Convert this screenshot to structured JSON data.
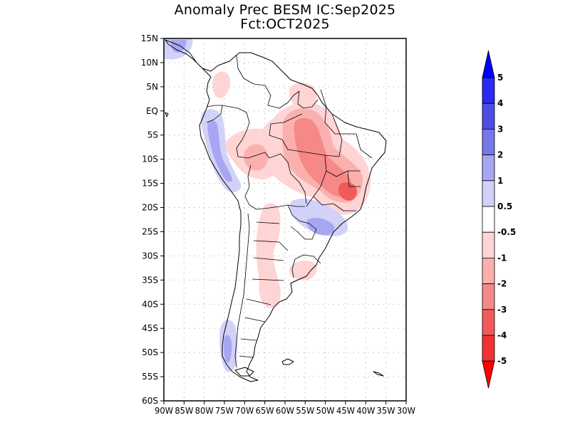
{
  "title": {
    "line1": "Anomaly Prec BESM IC:Sep2025",
    "line2": "Fct:OCT2025"
  },
  "map": {
    "region": "South America",
    "variable": "Precipitation anomaly",
    "lon_range": [
      -90,
      -30
    ],
    "lat_range": [
      -60,
      15
    ],
    "lat_ticks": [
      "15N",
      "10N",
      "5N",
      "EQ",
      "5S",
      "10S",
      "15S",
      "20S",
      "25S",
      "30S",
      "35S",
      "40S",
      "45S",
      "50S",
      "55S",
      "60S"
    ],
    "lon_ticks": [
      "90W",
      "85W",
      "80W",
      "75W",
      "70W",
      "65W",
      "60W",
      "55W",
      "50W",
      "45W",
      "40W",
      "35W",
      "30W"
    ],
    "anomaly_regions": [
      {
        "name": "central-brazil-dry",
        "sign": "negative",
        "level": "-1 to -2"
      },
      {
        "name": "minas-gerais-dry",
        "sign": "negative",
        "level": "-2 to -3"
      },
      {
        "name": "northern-brazil-dry",
        "sign": "negative",
        "level": "-0.5 to -1"
      },
      {
        "name": "argentina-dry",
        "sign": "negative",
        "level": "-0.5 to -1"
      },
      {
        "name": "peru-coast-wet",
        "sign": "positive",
        "level": "0.5 to 2"
      },
      {
        "name": "south-brazil-paraguay-wet",
        "sign": "positive",
        "level": "0.5 to 2"
      },
      {
        "name": "patagonia-wet",
        "sign": "positive",
        "level": "0.5 to 2"
      },
      {
        "name": "panama-wet",
        "sign": "positive",
        "level": "0.5 to 2"
      }
    ]
  },
  "colorbar": {
    "levels": [
      "5",
      "4",
      "3",
      "2",
      "1",
      "0.5",
      "-0.5",
      "-1",
      "-2",
      "-3",
      "-4",
      "-5"
    ],
    "colors": {
      "pos5": "#0000ff",
      "pos4": "#2a2af0",
      "pos3": "#4d4de6",
      "pos2": "#7777ec",
      "pos1": "#a6a6f2",
      "pos05": "#d2d2f8",
      "neutral": "#ffffff",
      "neg05": "#ffd4d4",
      "neg1": "#fbb0b0",
      "neg2": "#f78888",
      "neg3": "#f25a5a",
      "neg4": "#f03232",
      "neg5": "#ff0000"
    }
  }
}
